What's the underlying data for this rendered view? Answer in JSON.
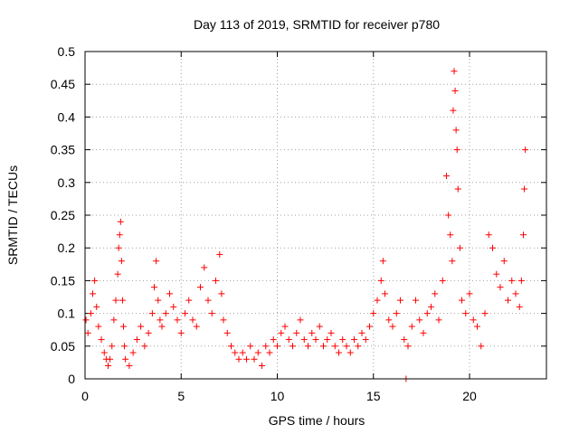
{
  "chart_data": {
    "type": "scatter",
    "title": "Day 113 of 2019, SRMTID for receiver p780",
    "xlabel": "GPS time / hours",
    "ylabel": "SRMTID / TECUs",
    "xlim": [
      0,
      24
    ],
    "ylim": [
      0,
      0.5
    ],
    "x_ticks": [
      0,
      5,
      10,
      15,
      20
    ],
    "x_tick_labels": [
      "0",
      "5",
      "10",
      "15",
      "20"
    ],
    "y_ticks": [
      0,
      0.05,
      0.1,
      0.15,
      0.2,
      0.25,
      0.3,
      0.35,
      0.4,
      0.45,
      0.5
    ],
    "y_tick_labels": [
      "0",
      "0.05",
      "0.1",
      "0.15",
      "0.2",
      "0.25",
      "0.3",
      "0.35",
      "0.4",
      "0.45",
      "0.5"
    ],
    "grid": true,
    "marker": "plus",
    "color": "#ff0000",
    "series": [
      {
        "name": "SRMTID",
        "x": [
          0.05,
          0.15,
          0.3,
          0.4,
          0.5,
          0.6,
          0.7,
          0.85,
          1.0,
          1.1,
          1.2,
          1.3,
          1.4,
          1.5,
          1.6,
          1.7,
          1.75,
          1.8,
          1.85,
          1.9,
          1.95,
          2.0,
          2.05,
          2.1,
          2.3,
          2.5,
          2.7,
          2.9,
          3.1,
          3.3,
          3.5,
          3.6,
          3.7,
          3.8,
          3.9,
          4.0,
          4.2,
          4.4,
          4.6,
          4.8,
          5.0,
          5.2,
          5.4,
          5.6,
          5.8,
          6.0,
          6.2,
          6.4,
          6.6,
          6.8,
          7.0,
          7.1,
          7.2,
          7.4,
          7.6,
          7.8,
          8.0,
          8.2,
          8.4,
          8.6,
          8.8,
          9.0,
          9.2,
          9.4,
          9.6,
          9.8,
          10.0,
          10.2,
          10.4,
          10.6,
          10.8,
          11.0,
          11.2,
          11.4,
          11.6,
          11.8,
          12.0,
          12.2,
          12.4,
          12.6,
          12.8,
          13.0,
          13.2,
          13.4,
          13.6,
          13.8,
          14.0,
          14.2,
          14.4,
          14.6,
          14.8,
          15.0,
          15.2,
          15.4,
          15.5,
          15.6,
          15.8,
          16.0,
          16.2,
          16.4,
          16.6,
          16.7,
          16.8,
          17.0,
          17.2,
          17.4,
          17.6,
          17.8,
          18.0,
          18.2,
          18.4,
          18.6,
          18.8,
          18.9,
          19.0,
          19.1,
          19.15,
          19.2,
          19.25,
          19.3,
          19.35,
          19.4,
          19.5,
          19.6,
          19.8,
          20.0,
          20.2,
          20.4,
          20.6,
          20.8,
          21.0,
          21.2,
          21.4,
          21.6,
          21.8,
          22.0,
          22.2,
          22.4,
          22.6,
          22.7,
          22.8,
          22.85,
          22.9
        ],
        "values": [
          0.09,
          0.07,
          0.1,
          0.13,
          0.15,
          0.11,
          0.08,
          0.06,
          0.04,
          0.03,
          0.02,
          0.03,
          0.05,
          0.09,
          0.12,
          0.16,
          0.2,
          0.22,
          0.24,
          0.18,
          0.12,
          0.08,
          0.05,
          0.03,
          0.02,
          0.04,
          0.06,
          0.08,
          0.05,
          0.07,
          0.1,
          0.14,
          0.18,
          0.12,
          0.09,
          0.08,
          0.1,
          0.13,
          0.11,
          0.09,
          0.07,
          0.1,
          0.12,
          0.09,
          0.08,
          0.14,
          0.17,
          0.12,
          0.1,
          0.15,
          0.19,
          0.13,
          0.09,
          0.07,
          0.05,
          0.04,
          0.03,
          0.04,
          0.03,
          0.05,
          0.03,
          0.04,
          0.02,
          0.05,
          0.04,
          0.06,
          0.05,
          0.07,
          0.08,
          0.06,
          0.05,
          0.07,
          0.09,
          0.06,
          0.05,
          0.07,
          0.06,
          0.08,
          0.05,
          0.06,
          0.07,
          0.05,
          0.04,
          0.06,
          0.05,
          0.04,
          0.06,
          0.05,
          0.07,
          0.06,
          0.08,
          0.1,
          0.12,
          0.15,
          0.18,
          0.13,
          0.09,
          0.08,
          0.1,
          0.12,
          0.06,
          0.0,
          0.05,
          0.08,
          0.12,
          0.09,
          0.07,
          0.1,
          0.11,
          0.13,
          0.09,
          0.15,
          0.31,
          0.25,
          0.22,
          0.18,
          0.41,
          0.47,
          0.44,
          0.38,
          0.35,
          0.29,
          0.2,
          0.12,
          0.1,
          0.13,
          0.09,
          0.08,
          0.05,
          0.1,
          0.22,
          0.2,
          0.16,
          0.14,
          0.18,
          0.12,
          0.15,
          0.13,
          0.11,
          0.15,
          0.22,
          0.29,
          0.35
        ]
      }
    ]
  }
}
